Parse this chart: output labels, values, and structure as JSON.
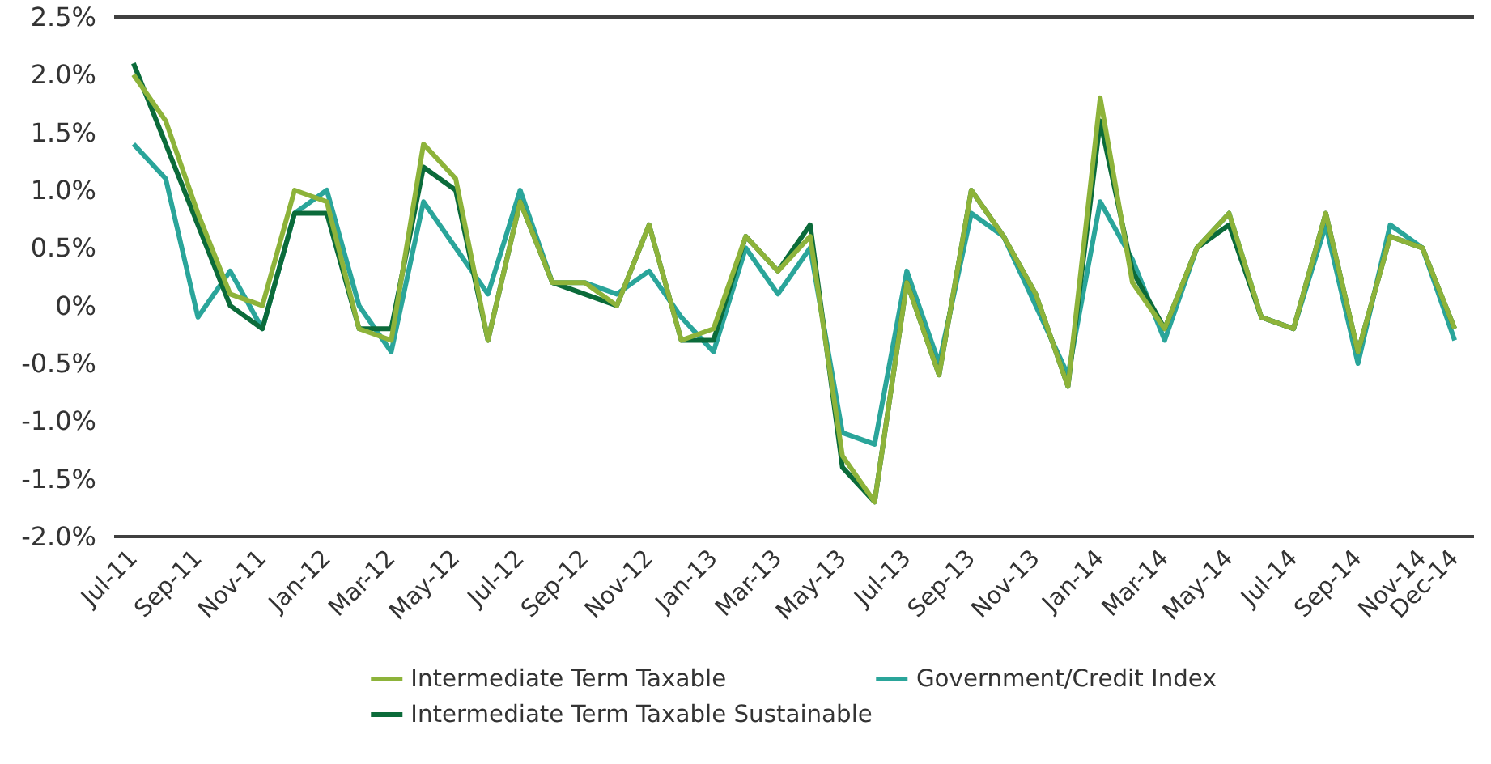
{
  "chart_data": {
    "type": "line",
    "categories": [
      "Jul-11",
      null,
      "Sep-11",
      null,
      "Nov-11",
      null,
      "Jan-12",
      null,
      "Mar-12",
      null,
      "May-12",
      null,
      "Jul-12",
      null,
      "Sep-12",
      null,
      "Nov-12",
      null,
      "Jan-13",
      null,
      "Mar-13",
      null,
      "May-13",
      null,
      "Jul-13",
      null,
      "Sep-13",
      null,
      "Nov-13",
      null,
      "Jan-14",
      null,
      "Mar-14",
      null,
      "May-14",
      null,
      "Jul-14",
      null,
      "Sep-14",
      null,
      "Nov-14",
      "Dec-14"
    ],
    "series": [
      {
        "name": "Intermediate Term Taxable",
        "color": "#8db33a",
        "values": [
          2.0,
          1.6,
          0.8,
          0.1,
          0.0,
          1.0,
          0.9,
          -0.2,
          -0.3,
          1.4,
          1.1,
          -0.3,
          0.9,
          0.2,
          0.2,
          0.0,
          0.7,
          -0.3,
          -0.2,
          0.6,
          0.3,
          0.6,
          -1.3,
          -1.7,
          0.2,
          -0.6,
          1.0,
          0.6,
          0.1,
          -0.7,
          1.8,
          0.2,
          -0.2,
          0.5,
          0.8,
          -0.1,
          -0.2,
          0.8,
          -0.4,
          0.6,
          0.5,
          -0.2
        ]
      },
      {
        "name": "Intermediate Term Taxable Sustainable",
        "color": "#0b6b3a",
        "values": [
          2.1,
          1.4,
          0.7,
          0.0,
          -0.2,
          0.8,
          0.8,
          -0.2,
          -0.2,
          1.2,
          1.0,
          -0.3,
          0.9,
          0.2,
          0.1,
          0.0,
          0.7,
          -0.3,
          -0.3,
          0.6,
          0.3,
          0.7,
          -1.4,
          -1.7,
          0.2,
          -0.6,
          1.0,
          0.6,
          0.1,
          -0.7,
          1.6,
          0.3,
          -0.2,
          0.5,
          0.7,
          -0.1,
          -0.2,
          0.8,
          -0.4,
          0.6,
          0.5,
          -0.2
        ]
      },
      {
        "name": "Government/Credit Index",
        "color": "#2aa59a",
        "values": [
          1.4,
          1.1,
          -0.1,
          0.3,
          -0.2,
          0.8,
          1.0,
          0.0,
          -0.4,
          0.9,
          0.5,
          0.1,
          1.0,
          0.2,
          0.2,
          0.1,
          0.3,
          -0.1,
          -0.4,
          0.5,
          0.1,
          0.5,
          -1.1,
          -1.2,
          0.3,
          -0.5,
          0.8,
          0.6,
          0.0,
          -0.6,
          0.9,
          0.4,
          -0.3,
          0.5,
          0.8,
          -0.1,
          -0.2,
          0.7,
          -0.5,
          0.7,
          0.5,
          -0.3
        ]
      }
    ],
    "ylim": [
      -2.0,
      2.5
    ],
    "yticks": [
      {
        "value": -2.0,
        "label": "-2.0%"
      },
      {
        "value": -1.5,
        "label": "-1.5%"
      },
      {
        "value": -1.0,
        "label": "-1.0%"
      },
      {
        "value": -0.5,
        "label": "-0.5%"
      },
      {
        "value": 0,
        "label": "0%"
      },
      {
        "value": 0.5,
        "label": "0.5%"
      },
      {
        "value": 1.0,
        "label": "1.0%"
      },
      {
        "value": 1.5,
        "label": "1.5%"
      },
      {
        "value": 2.0,
        "label": "2.0%"
      },
      {
        "value": 2.5,
        "label": "2.5%"
      }
    ],
    "grid": false,
    "legend": "bottom",
    "line_style": "solid"
  }
}
